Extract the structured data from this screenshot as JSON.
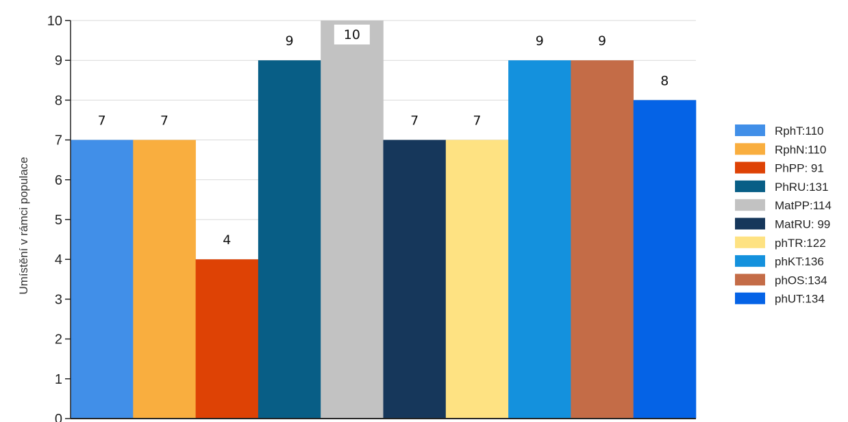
{
  "chart_data": {
    "type": "bar",
    "title": "",
    "xlabel": "",
    "ylabel": "Umístění v rámci populace",
    "ylim": [
      0,
      10
    ],
    "yticks": [
      0,
      1,
      2,
      3,
      4,
      5,
      6,
      7,
      8,
      9,
      10
    ],
    "grid": true,
    "legend_position": "right",
    "series": [
      {
        "name": "RphT:110",
        "value": 7,
        "color": "#418FE8"
      },
      {
        "name": "RphN:110",
        "value": 7,
        "color": "#F9AE3F"
      },
      {
        "name": "PhPP: 91",
        "value": 4,
        "color": "#DE4205"
      },
      {
        "name": "PhRU:131",
        "value": 9,
        "color": "#085E86"
      },
      {
        "name": "MatPP:114",
        "value": 10,
        "color": "#C2C2C2"
      },
      {
        "name": "MatRU: 99",
        "value": 7,
        "color": "#16375B"
      },
      {
        "name": "phTR:122",
        "value": 7,
        "color": "#FEE282"
      },
      {
        "name": "phKT:136",
        "value": 9,
        "color": "#1491DD"
      },
      {
        "name": "phOS:134",
        "value": 9,
        "color": "#C46C47"
      },
      {
        "name": "phUT:134",
        "value": 8,
        "color": "#0563E6"
      }
    ]
  }
}
